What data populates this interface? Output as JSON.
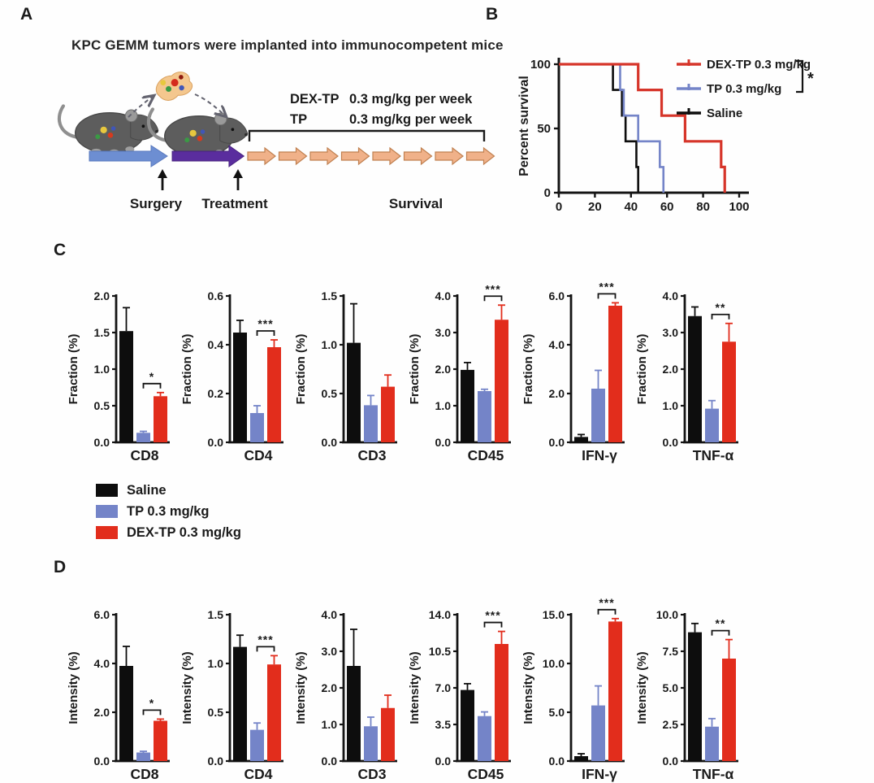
{
  "figure": {
    "panels": {
      "a": "A",
      "b": "B",
      "c": "C",
      "d": "D"
    }
  },
  "panelA": {
    "title": "KPC GEMM tumors were implanted into immunocompetent mice",
    "regimen": {
      "row1_drug": "DEX-TP",
      "row1_dose": "0.3 mg/kg per week",
      "row2_drug": "TP",
      "row2_dose": "0.3 mg/kg per week"
    },
    "labels": {
      "surgery": "Surgery",
      "treatment": "Treatment",
      "survival": "Survival"
    }
  },
  "legend": {
    "items": [
      {
        "label": "Saline",
        "color": "#0d0d0d"
      },
      {
        "label": "TP 0.3 mg/kg",
        "color": "#7484c8"
      },
      {
        "label": "DEX-TP 0.3 mg/kg",
        "color": "#e22d1c"
      }
    ]
  },
  "chart_data": [
    {
      "id": "survival-km",
      "type": "line",
      "title": "",
      "xlabel": "",
      "ylabel": "Percent survival",
      "xlim": [
        0,
        100
      ],
      "ylim": [
        0,
        100
      ],
      "xticks": [
        "0",
        "20",
        "40",
        "60",
        "80",
        "100"
      ],
      "yticks": [
        "0",
        "50",
        "100"
      ],
      "grid": false,
      "legend_position": "top-right",
      "significance": "*",
      "series": [
        {
          "name": "DEX-TP 0.3 mg/kg",
          "color": "#d6352a",
          "steps": [
            [
              0,
              100
            ],
            [
              44,
              100
            ],
            [
              44,
              80
            ],
            [
              57,
              80
            ],
            [
              57,
              60
            ],
            [
              70,
              60
            ],
            [
              70,
              40
            ],
            [
              90,
              40
            ],
            [
              90,
              20
            ],
            [
              92,
              20
            ],
            [
              92,
              0
            ]
          ]
        },
        {
          "name": "TP 0.3 mg/kg",
          "color": "#7484c8",
          "steps": [
            [
              0,
              100
            ],
            [
              34,
              100
            ],
            [
              34,
              80
            ],
            [
              36,
              80
            ],
            [
              36,
              60
            ],
            [
              44,
              60
            ],
            [
              44,
              40
            ],
            [
              56,
              40
            ],
            [
              56,
              20
            ],
            [
              58,
              20
            ],
            [
              58,
              0
            ]
          ]
        },
        {
          "name": "Saline",
          "color": "#0d0d0d",
          "steps": [
            [
              0,
              100
            ],
            [
              30,
              100
            ],
            [
              30,
              80
            ],
            [
              35,
              80
            ],
            [
              35,
              60
            ],
            [
              37,
              60
            ],
            [
              37,
              40
            ],
            [
              43,
              40
            ],
            [
              43,
              20
            ],
            [
              44,
              20
            ],
            [
              44,
              0
            ]
          ]
        }
      ]
    },
    {
      "id": "panelC-fraction",
      "type": "bar",
      "ylabel": "Fraction (%)",
      "groups": [
        "Saline",
        "TP 0.3 mg/kg",
        "DEX-TP 0.3 mg/kg"
      ],
      "colors": [
        "#0d0d0d",
        "#7484c8",
        "#e22d1c"
      ],
      "charts": [
        {
          "category": "CD8",
          "ymax": 2.0,
          "yticks": [
            "0.0",
            "0.5",
            "1.0",
            "1.5",
            "2.0"
          ],
          "values": [
            1.52,
            0.13,
            0.63
          ],
          "errors": [
            0.32,
            0.02,
            0.05
          ],
          "sig": "*"
        },
        {
          "category": "CD4",
          "ymax": 0.6,
          "yticks": [
            "0.0",
            "0.2",
            "0.4",
            "0.6"
          ],
          "values": [
            0.45,
            0.12,
            0.39
          ],
          "errors": [
            0.05,
            0.03,
            0.03
          ],
          "sig": "***"
        },
        {
          "category": "CD3",
          "ymax": 1.5,
          "yticks": [
            "0.0",
            "0.5",
            "1.0",
            "1.5"
          ],
          "values": [
            1.02,
            0.38,
            0.57
          ],
          "errors": [
            0.4,
            0.1,
            0.12
          ],
          "sig": ""
        },
        {
          "category": "CD45",
          "ymax": 4.0,
          "yticks": [
            "0.0",
            "1.0",
            "2.0",
            "3.0",
            "4.0"
          ],
          "values": [
            1.98,
            1.4,
            3.35
          ],
          "errors": [
            0.2,
            0.05,
            0.4
          ],
          "sig": "***"
        },
        {
          "category": "IFN-γ",
          "ymax": 6.0,
          "yticks": [
            "0.0",
            "2.0",
            "4.0",
            "6.0"
          ],
          "values": [
            0.22,
            2.2,
            5.6
          ],
          "errors": [
            0.1,
            0.75,
            0.12
          ],
          "sig": "***"
        },
        {
          "category": "TNF-α",
          "ymax": 4.0,
          "yticks": [
            "0.0",
            "1.0",
            "2.0",
            "3.0",
            "4.0"
          ],
          "values": [
            3.45,
            0.92,
            2.75
          ],
          "errors": [
            0.25,
            0.22,
            0.5
          ],
          "sig": "**"
        }
      ]
    },
    {
      "id": "panelD-intensity",
      "type": "bar",
      "ylabel": "Intensity (%)",
      "groups": [
        "Saline",
        "TP 0.3 mg/kg",
        "DEX-TP 0.3 mg/kg"
      ],
      "colors": [
        "#0d0d0d",
        "#7484c8",
        "#e22d1c"
      ],
      "charts": [
        {
          "category": "CD8",
          "ymax": 6.0,
          "yticks": [
            "0.0",
            "2.0",
            "4.0",
            "6.0"
          ],
          "values": [
            3.9,
            0.35,
            1.65
          ],
          "errors": [
            0.8,
            0.05,
            0.07
          ],
          "sig": "*"
        },
        {
          "category": "CD4",
          "ymax": 1.5,
          "yticks": [
            "0.0",
            "0.5",
            "1.0",
            "1.5"
          ],
          "values": [
            1.17,
            0.32,
            0.99
          ],
          "errors": [
            0.12,
            0.07,
            0.09
          ],
          "sig": "***"
        },
        {
          "category": "CD3",
          "ymax": 4.0,
          "yticks": [
            "0.0",
            "1.0",
            "2.0",
            "3.0",
            "4.0"
          ],
          "values": [
            2.6,
            0.95,
            1.45
          ],
          "errors": [
            1.0,
            0.25,
            0.35
          ],
          "sig": ""
        },
        {
          "category": "CD45",
          "ymax": 14.0,
          "yticks": [
            "0.0",
            "3.5",
            "7.0",
            "10.5",
            "14.0"
          ],
          "values": [
            6.8,
            4.3,
            11.2
          ],
          "errors": [
            0.6,
            0.4,
            1.2
          ],
          "sig": "***"
        },
        {
          "category": "IFN-γ",
          "ymax": 15.0,
          "yticks": [
            "0.0",
            "5.0",
            "10.0",
            "15.0"
          ],
          "values": [
            0.5,
            5.7,
            14.3
          ],
          "errors": [
            0.25,
            2.0,
            0.3
          ],
          "sig": "***"
        },
        {
          "category": "TNF-α",
          "ymax": 10.0,
          "yticks": [
            "0.0",
            "2.5",
            "5.0",
            "7.5",
            "10.0"
          ],
          "values": [
            8.8,
            2.35,
            7.0
          ],
          "errors": [
            0.6,
            0.55,
            1.3
          ],
          "sig": "**"
        }
      ]
    }
  ]
}
